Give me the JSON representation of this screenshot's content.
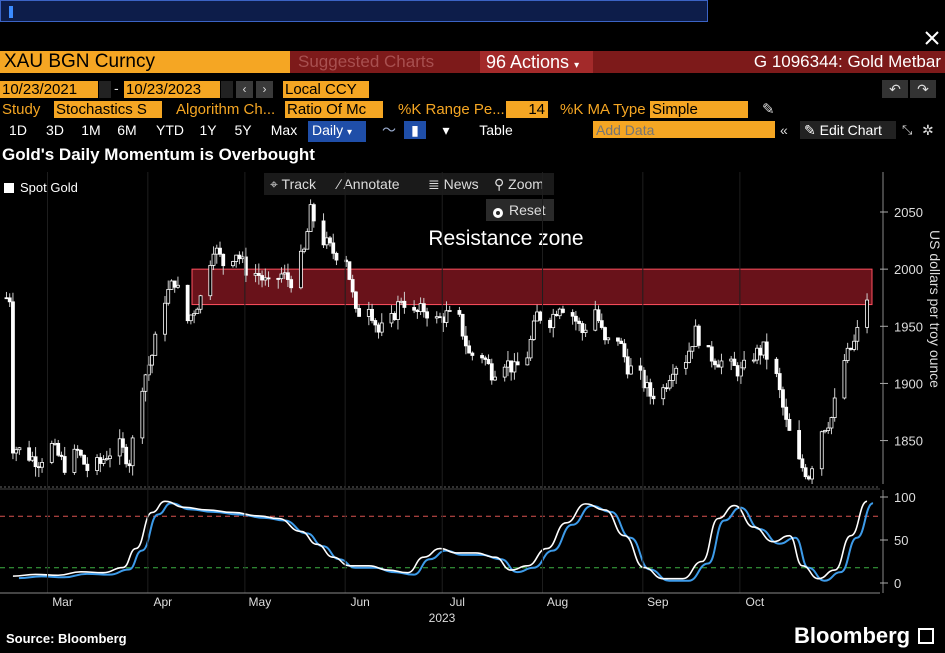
{
  "header": {
    "ticker": "XAU BGN Curncy",
    "suggested": "Suggested Charts",
    "actions": "96 Actions",
    "security_name": "G 1096344: Gold Metbar"
  },
  "controls": {
    "start_date": "10/23/2021",
    "end_date": "10/23/2023",
    "currency": "Local CCY",
    "study_label": "Study",
    "study_value": "Stochastics S",
    "algo_label": "Algorithm Ch...",
    "algo_value": "Ratio Of Mc",
    "krange_label": "%K Range Pe...",
    "krange_value": "14",
    "kma_label": "%K MA Type",
    "kma_value": "Simple",
    "add_data_placeholder": "Add Data",
    "edit_chart": "Edit Chart",
    "table": "Table"
  },
  "tabs": [
    "1D",
    "3D",
    "1M",
    "6M",
    "YTD",
    "1Y",
    "5Y",
    "Max",
    "Daily"
  ],
  "tools": {
    "track": "Track",
    "annotate": "Annotate",
    "news": "News",
    "zoom": "Zoom",
    "reset": "Reset"
  },
  "footer": {
    "source": "Source: Bloomberg",
    "brand": "Bloomberg"
  },
  "colors": {
    "accent": "#f5a623",
    "zone": "#c0202f",
    "stoch_k": "#ffffff",
    "stoch_d": "#3d9be9"
  },
  "chart_data": [
    {
      "type": "candlestick",
      "title": "Gold's Daily Momentum is Overbought",
      "series_name": "Spot Gold",
      "ylabel": "US dollars per troy ounce",
      "ylim": [
        1812,
        2085
      ],
      "yticks": [
        1850,
        1900,
        1950,
        2000,
        2050
      ],
      "annotation": {
        "text": "Resistance zone",
        "range": [
          1969,
          2000
        ]
      },
      "xlabel": "2023",
      "x_months": [
        "Mar",
        "Apr",
        "May",
        "Jun",
        "Jul",
        "Aug",
        "Sep",
        "Oct"
      ],
      "close_path": [
        [
          "2023-02-01",
          1845
        ],
        [
          "2023-02-05",
          1838
        ],
        [
          "2023-02-09",
          1832
        ],
        [
          "2023-02-13",
          1845
        ],
        [
          "2023-02-17",
          1828
        ],
        [
          "2023-02-21",
          1840
        ],
        [
          "2023-02-24",
          1825
        ],
        [
          "2023-02-28",
          1830
        ],
        [
          "2023-03-02",
          1838
        ],
        [
          "2023-03-06",
          1845
        ],
        [
          "2023-03-09",
          1832
        ],
        [
          "2023-03-13",
          1900
        ],
        [
          "2023-03-16",
          1925
        ],
        [
          "2023-03-20",
          1975
        ],
        [
          "2023-03-23",
          1990
        ],
        [
          "2023-03-27",
          1955
        ],
        [
          "2023-03-31",
          1975
        ],
        [
          "2023-04-04",
          2020
        ],
        [
          "2023-04-07",
          2005
        ],
        [
          "2023-04-11",
          2015
        ],
        [
          "2023-04-14",
          2000
        ],
        [
          "2023-04-18",
          1995
        ],
        [
          "2023-04-21",
          1985
        ],
        [
          "2023-04-25",
          1995
        ],
        [
          "2023-04-28",
          1990
        ],
        [
          "2023-05-02",
          2015
        ],
        [
          "2023-05-04",
          2050
        ],
        [
          "2023-05-08",
          2025
        ],
        [
          "2023-05-11",
          2015
        ],
        [
          "2023-05-15",
          2010
        ],
        [
          "2023-05-18",
          1960
        ],
        [
          "2023-05-22",
          1970
        ],
        [
          "2023-05-25",
          1945
        ],
        [
          "2023-05-29",
          1955
        ],
        [
          "2023-06-01",
          1975
        ],
        [
          "2023-06-05",
          1960
        ],
        [
          "2023-06-08",
          1965
        ],
        [
          "2023-06-12",
          1955
        ],
        [
          "2023-06-15",
          1960
        ],
        [
          "2023-06-19",
          1955
        ],
        [
          "2023-06-22",
          1925
        ],
        [
          "2023-06-26",
          1925
        ],
        [
          "2023-06-29",
          1910
        ],
        [
          "2023-07-03",
          1920
        ],
        [
          "2023-07-06",
          1912
        ],
        [
          "2023-07-10",
          1925
        ],
        [
          "2023-07-13",
          1960
        ],
        [
          "2023-07-17",
          1955
        ],
        [
          "2023-07-20",
          1970
        ],
        [
          "2023-07-24",
          1960
        ],
        [
          "2023-07-27",
          1945
        ],
        [
          "2023-07-31",
          1965
        ],
        [
          "2023-08-03",
          1935
        ],
        [
          "2023-08-07",
          1940
        ],
        [
          "2023-08-10",
          1915
        ],
        [
          "2023-08-14",
          1905
        ],
        [
          "2023-08-17",
          1890
        ],
        [
          "2023-08-21",
          1895
        ],
        [
          "2023-08-24",
          1915
        ],
        [
          "2023-08-28",
          1922
        ],
        [
          "2023-08-31",
          1945
        ],
        [
          "2023-09-04",
          1925
        ],
        [
          "2023-09-07",
          1920
        ],
        [
          "2023-09-11",
          1915
        ],
        [
          "2023-09-14",
          1910
        ],
        [
          "2023-09-18",
          1925
        ],
        [
          "2023-09-21",
          1930
        ],
        [
          "2023-09-25",
          1905
        ],
        [
          "2023-09-28",
          1865
        ],
        [
          "2023-10-02",
          1830
        ],
        [
          "2023-10-05",
          1820
        ],
        [
          "2023-10-09",
          1860
        ],
        [
          "2023-10-12",
          1870
        ],
        [
          "2023-10-16",
          1920
        ],
        [
          "2023-10-19",
          1935
        ],
        [
          "2023-10-23",
          1975
        ]
      ]
    },
    {
      "type": "line",
      "series": [
        {
          "name": "%K"
        },
        {
          "name": "%D"
        }
      ],
      "ylim": [
        0,
        100
      ],
      "yticks": [
        0,
        50,
        100
      ],
      "reference_lines": [
        20,
        80
      ],
      "k_values": [
        [
          "2023-02-01",
          8
        ],
        [
          "2023-02-08",
          10
        ],
        [
          "2023-02-15",
          9
        ],
        [
          "2023-02-22",
          13
        ],
        [
          "2023-03-01",
          12
        ],
        [
          "2023-03-07",
          18
        ],
        [
          "2023-03-11",
          40
        ],
        [
          "2023-03-16",
          82
        ],
        [
          "2023-03-20",
          95
        ],
        [
          "2023-03-26",
          88
        ],
        [
          "2023-04-02",
          85
        ],
        [
          "2023-04-10",
          82
        ],
        [
          "2023-04-18",
          78
        ],
        [
          "2023-04-24",
          75
        ],
        [
          "2023-05-01",
          60
        ],
        [
          "2023-05-06",
          45
        ],
        [
          "2023-05-11",
          30
        ],
        [
          "2023-05-16",
          20
        ],
        [
          "2023-05-22",
          20
        ],
        [
          "2023-05-28",
          15
        ],
        [
          "2023-06-03",
          12
        ],
        [
          "2023-06-08",
          30
        ],
        [
          "2023-06-13",
          40
        ],
        [
          "2023-06-18",
          35
        ],
        [
          "2023-06-24",
          35
        ],
        [
          "2023-06-30",
          30
        ],
        [
          "2023-07-05",
          15
        ],
        [
          "2023-07-10",
          20
        ],
        [
          "2023-07-16",
          40
        ],
        [
          "2023-07-22",
          70
        ],
        [
          "2023-07-28",
          92
        ],
        [
          "2023-08-03",
          85
        ],
        [
          "2023-08-09",
          55
        ],
        [
          "2023-08-15",
          18
        ],
        [
          "2023-08-21",
          5
        ],
        [
          "2023-08-27",
          5
        ],
        [
          "2023-09-02",
          25
        ],
        [
          "2023-09-07",
          75
        ],
        [
          "2023-09-12",
          90
        ],
        [
          "2023-09-18",
          65
        ],
        [
          "2023-09-24",
          48
        ],
        [
          "2023-09-29",
          55
        ],
        [
          "2023-10-03",
          20
        ],
        [
          "2023-10-08",
          5
        ],
        [
          "2023-10-13",
          15
        ],
        [
          "2023-10-18",
          55
        ],
        [
          "2023-10-23",
          95
        ]
      ]
    }
  ]
}
